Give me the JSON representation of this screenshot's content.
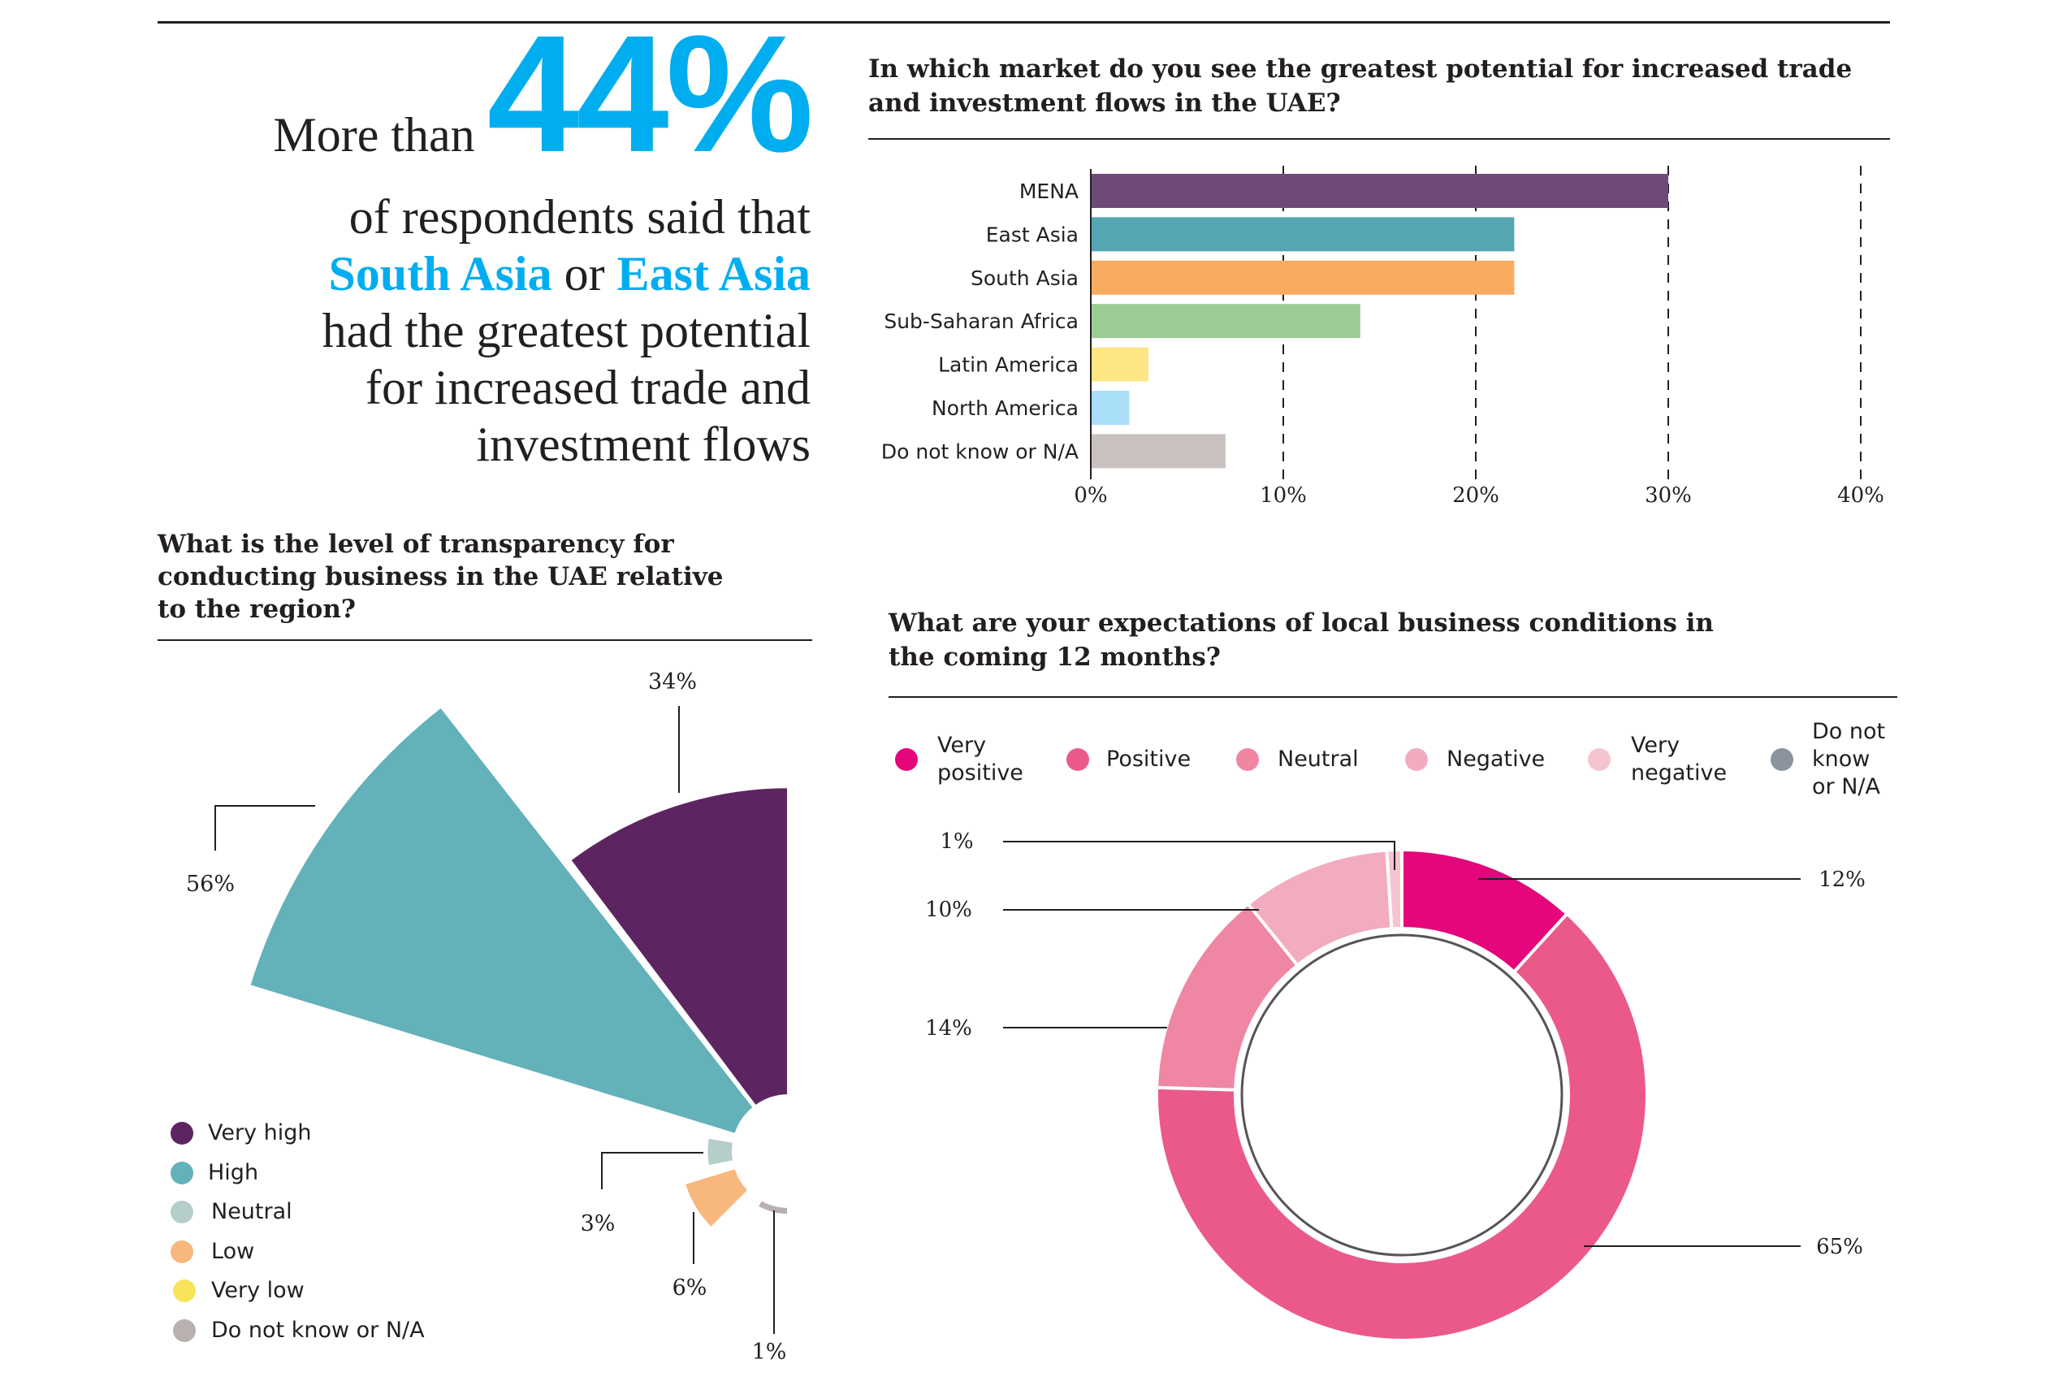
{
  "headline": {
    "prefix": "More than",
    "big_value": "44%",
    "line2": "of respondents said that",
    "highlight1": "South Asia",
    "joiner": " or ",
    "highlight2": "East Asia",
    "line4": "had the greatest potential",
    "line5": "for increased trade and",
    "line6": "investment flows"
  },
  "colors": {
    "accent": "#00aeef",
    "text": "#231f20"
  },
  "chart_data": [
    {
      "type": "bar",
      "orientation": "horizontal",
      "title": "In which market do you see the greatest potential for increased trade and investment flows in the UAE?",
      "title_lines": [
        "In which market do you see the greatest potential for increased trade",
        "and investment flows in the UAE?"
      ],
      "categories": [
        "MENA",
        "East Asia",
        "South Asia",
        "Sub-Saharan Africa",
        "Latin America",
        "North America",
        "Do not know or N/A"
      ],
      "values": [
        30,
        22,
        22,
        14,
        3,
        2,
        7
      ],
      "colors": [
        "#6f4a78",
        "#53a6b2",
        "#f9ac60",
        "#9dcb94",
        "#fee685",
        "#aadffa",
        "#c9c1bf"
      ],
      "xlim": [
        0,
        40
      ],
      "ticks": [
        0,
        10,
        20,
        30,
        40
      ],
      "tick_labels": [
        "0%",
        "10%",
        "20%",
        "30%",
        "40%"
      ],
      "grid": "dashed vertical"
    },
    {
      "type": "polar-area",
      "title": "What is the level of transparency for conducting business in the UAE relative to the region?",
      "title_lines": [
        "What is the level of transparency for",
        "conducting business in the UAE relative",
        "to the region?"
      ],
      "categories": [
        "Very high",
        "High",
        "Neutral",
        "Low",
        "Very low",
        "Do not know or N/A"
      ],
      "values": [
        34,
        56,
        3,
        6,
        0,
        1
      ],
      "labels": [
        "34%",
        "56%",
        "3%",
        "6%",
        "",
        "1%"
      ],
      "colors": [
        "#5d2462",
        "#63b1b9",
        "#b5cdcb",
        "#f8b77d",
        "#f8e45a",
        "#b9b0b0"
      ],
      "legend": "bottom-left"
    },
    {
      "type": "pie",
      "subtype": "donut",
      "title": "What are your expectations of local business conditions in the coming 12 months?",
      "title_lines": [
        "What are your expectations of local business conditions in",
        "the coming 12 months?"
      ],
      "categories": [
        "Very positive",
        "Positive",
        "Neutral",
        "Negative",
        "Very negative",
        "Do not know or N/A"
      ],
      "legend_lines": [
        [
          "Very",
          "positive"
        ],
        [
          "Positive"
        ],
        [
          "Neutral"
        ],
        [
          "Negative"
        ],
        [
          "Very",
          "negative"
        ],
        [
          "Do not",
          "know",
          "or N/A"
        ]
      ],
      "values": [
        12,
        65,
        14,
        10,
        1,
        0
      ],
      "labels": [
        "12%",
        "65%",
        "14%",
        "10%",
        "1%",
        ""
      ],
      "colors": [
        "#e4067a",
        "#eb598b",
        "#ee86a4",
        "#f3abbf",
        "#f6c3d0",
        "#8a939e"
      ],
      "legend": "top"
    }
  ]
}
